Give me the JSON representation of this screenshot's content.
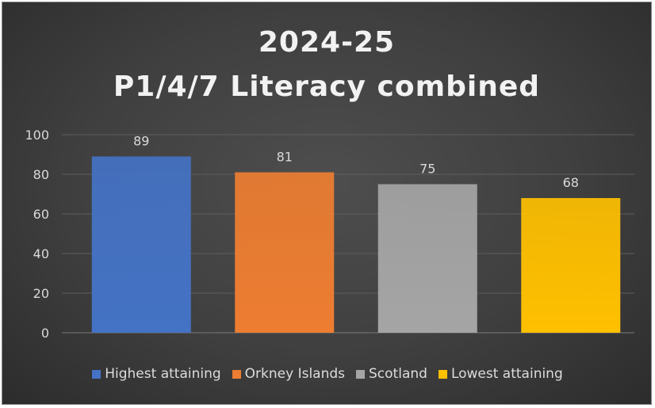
{
  "chart_data": {
    "type": "bar",
    "title_line1": "2024-25",
    "title_line2": "P1/4/7 Literacy combined",
    "xlabel": "",
    "ylabel": "",
    "ylim": [
      0,
      100
    ],
    "yticks": [
      0,
      20,
      40,
      60,
      80,
      100
    ],
    "grid": true,
    "legend_position": "bottom",
    "categories": [
      "Highest attaining",
      "Orkney Islands",
      "Scotland",
      "Lowest attaining"
    ],
    "values": [
      89,
      81,
      75,
      68
    ],
    "colors": [
      "#4472c4",
      "#ed7d31",
      "#a5a5a5",
      "#ffc000"
    ]
  }
}
